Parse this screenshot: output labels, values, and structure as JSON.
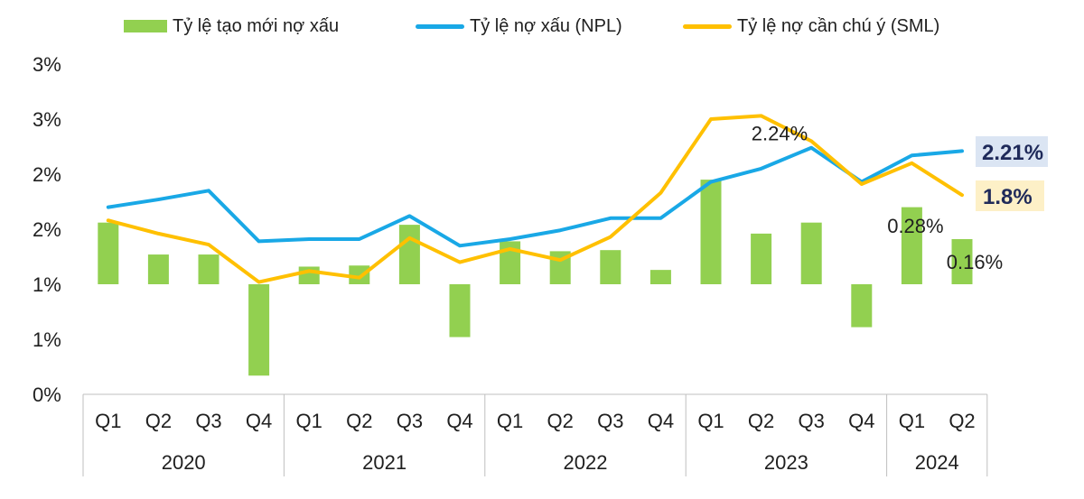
{
  "colors": {
    "bar": "#92d050",
    "npl": "#19a8e6",
    "sml": "#ffc000",
    "axis": "#bfbfbf",
    "text": "#1f1f1f",
    "npl_badge_bg": "#dbe5f3",
    "sml_badge_bg": "#fdf0c7",
    "badge_text": "#1f2a5a"
  },
  "legend": {
    "bar_label": "Tỷ lệ tạo mới nợ xấu",
    "npl_label": "Tỷ lệ nợ xấu (NPL)",
    "sml_label": "Tỷ lệ nợ cần chú ý (SML)"
  },
  "chart_data": {
    "type": "bar+line",
    "categories": [
      "Q1",
      "Q2",
      "Q3",
      "Q4",
      "Q1",
      "Q2",
      "Q3",
      "Q4",
      "Q1",
      "Q2",
      "Q3",
      "Q4",
      "Q1",
      "Q2",
      "Q3",
      "Q4",
      "Q1",
      "Q2"
    ],
    "years": [
      {
        "label": "2020",
        "count": 4
      },
      {
        "label": "2021",
        "count": 4
      },
      {
        "label": "2022",
        "count": 4
      },
      {
        "label": "2023",
        "count": 4
      },
      {
        "label": "2024",
        "count": 2
      }
    ],
    "y_ticks": [
      "0%",
      "1%",
      "1%",
      "2%",
      "2%",
      "3%",
      "3%"
    ],
    "ylim": [
      0,
      3
    ],
    "series": [
      {
        "name": "Tỷ lệ tạo mới nợ xấu",
        "type": "bar",
        "baseline": 1.0,
        "values": [
          1.56,
          1.27,
          1.27,
          0.17,
          1.16,
          1.17,
          1.54,
          0.52,
          1.39,
          1.3,
          1.31,
          1.13,
          1.95,
          1.46,
          1.56,
          0.61,
          1.7,
          1.41
        ]
      },
      {
        "name": "Tỷ lệ nợ xấu (NPL)",
        "type": "line",
        "values": [
          1.7,
          1.77,
          1.85,
          1.39,
          1.41,
          1.41,
          1.62,
          1.35,
          1.41,
          1.49,
          1.6,
          1.6,
          1.93,
          2.05,
          2.24,
          1.93,
          2.17,
          2.21
        ]
      },
      {
        "name": "Tỷ lệ nợ cần chú ý (SML)",
        "type": "line",
        "values": [
          1.58,
          1.46,
          1.36,
          1.02,
          1.12,
          1.06,
          1.42,
          1.2,
          1.32,
          1.22,
          1.43,
          1.83,
          2.5,
          2.53,
          2.3,
          1.91,
          2.1,
          1.81
        ]
      }
    ],
    "annotations": {
      "npl_peak": "2.24%",
      "bar_q1_2024": "0.28%",
      "bar_q2_2024": "0.16%",
      "npl_last": "2.21%",
      "sml_last": "1.8%"
    }
  }
}
